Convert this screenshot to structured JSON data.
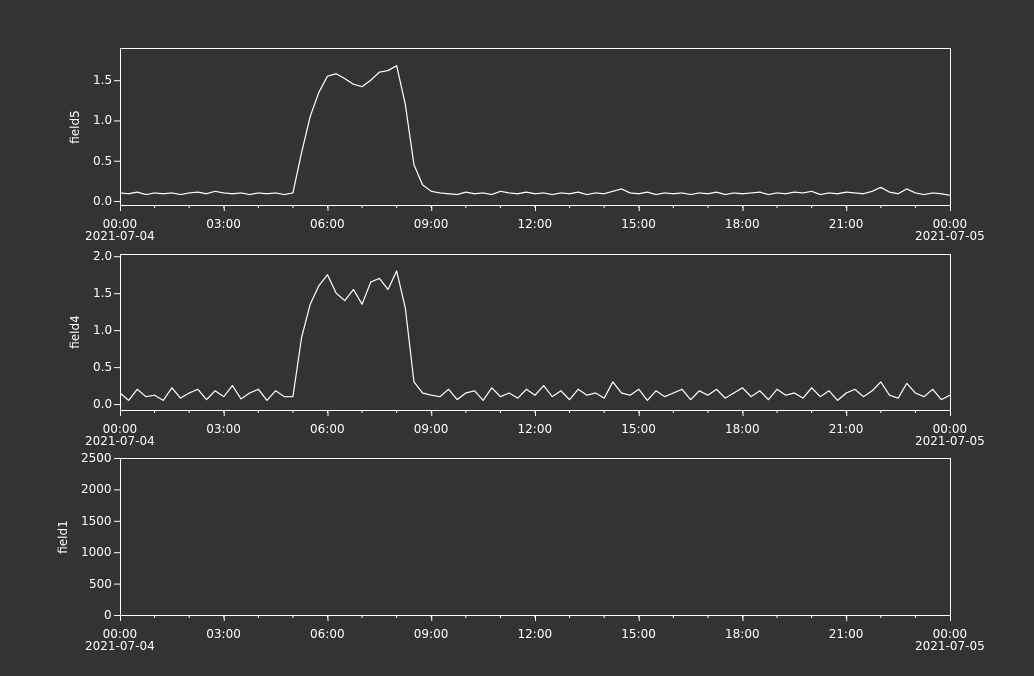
{
  "chart_data": [
    {
      "type": "line",
      "ylabel": "field5",
      "xlim": [
        "2021-07-04 00:00",
        "2021-07-05 00:00"
      ],
      "xticks": [
        {
          "value": "2021-07-04 00:00",
          "label": "00:00\n2021-07-04"
        },
        {
          "value": "2021-07-04 03:00",
          "label": "03:00"
        },
        {
          "value": "2021-07-04 06:00",
          "label": "06:00"
        },
        {
          "value": "2021-07-04 09:00",
          "label": "09:00"
        },
        {
          "value": "2021-07-04 12:00",
          "label": "12:00"
        },
        {
          "value": "2021-07-04 15:00",
          "label": "15:00"
        },
        {
          "value": "2021-07-04 18:00",
          "label": "18:00"
        },
        {
          "value": "2021-07-04 21:00",
          "label": "21:00"
        },
        {
          "value": "2021-07-05 00:00",
          "label": "00:00\n2021-07-05"
        }
      ],
      "ylim": [
        -0.05,
        1.9
      ],
      "yticks": [
        {
          "value": 0,
          "label": "0.0"
        },
        {
          "value": 0.5,
          "label": "0.5"
        },
        {
          "value": 1,
          "label": "1.0"
        },
        {
          "value": 1.5,
          "label": "1.5"
        }
      ],
      "x": [
        "2021-07-04 00:00",
        "2021-07-04 00:15",
        "2021-07-04 00:30",
        "2021-07-04 00:45",
        "2021-07-04 01:00",
        "2021-07-04 01:15",
        "2021-07-04 01:30",
        "2021-07-04 01:45",
        "2021-07-04 02:00",
        "2021-07-04 02:15",
        "2021-07-04 02:30",
        "2021-07-04 02:45",
        "2021-07-04 03:00",
        "2021-07-04 03:15",
        "2021-07-04 03:30",
        "2021-07-04 03:45",
        "2021-07-04 04:00",
        "2021-07-04 04:15",
        "2021-07-04 04:30",
        "2021-07-04 04:45",
        "2021-07-04 05:00",
        "2021-07-04 05:15",
        "2021-07-04 05:30",
        "2021-07-04 05:45",
        "2021-07-04 06:00",
        "2021-07-04 06:15",
        "2021-07-04 06:30",
        "2021-07-04 06:45",
        "2021-07-04 07:00",
        "2021-07-04 07:15",
        "2021-07-04 07:30",
        "2021-07-04 07:45",
        "2021-07-04 08:00",
        "2021-07-04 08:15",
        "2021-07-04 08:30",
        "2021-07-04 08:45",
        "2021-07-04 09:00",
        "2021-07-04 09:15",
        "2021-07-04 09:30",
        "2021-07-04 09:45",
        "2021-07-04 10:00",
        "2021-07-04 10:15",
        "2021-07-04 10:30",
        "2021-07-04 10:45",
        "2021-07-04 11:00",
        "2021-07-04 11:15",
        "2021-07-04 11:30",
        "2021-07-04 11:45",
        "2021-07-04 12:00",
        "2021-07-04 12:15",
        "2021-07-04 12:30",
        "2021-07-04 12:45",
        "2021-07-04 13:00",
        "2021-07-04 13:15",
        "2021-07-04 13:30",
        "2021-07-04 13:45",
        "2021-07-04 14:00",
        "2021-07-04 14:15",
        "2021-07-04 14:30",
        "2021-07-04 14:45",
        "2021-07-04 15:00",
        "2021-07-04 15:15",
        "2021-07-04 15:30",
        "2021-07-04 15:45",
        "2021-07-04 16:00",
        "2021-07-04 16:15",
        "2021-07-04 16:30",
        "2021-07-04 16:45",
        "2021-07-04 17:00",
        "2021-07-04 17:15",
        "2021-07-04 17:30",
        "2021-07-04 17:45",
        "2021-07-04 18:00",
        "2021-07-04 18:15",
        "2021-07-04 18:30",
        "2021-07-04 18:45",
        "2021-07-04 19:00",
        "2021-07-04 19:15",
        "2021-07-04 19:30",
        "2021-07-04 19:45",
        "2021-07-04 20:00",
        "2021-07-04 20:15",
        "2021-07-04 20:30",
        "2021-07-04 20:45",
        "2021-07-04 21:00",
        "2021-07-04 21:15",
        "2021-07-04 21:30",
        "2021-07-04 21:45",
        "2021-07-04 22:00",
        "2021-07-04 22:15",
        "2021-07-04 22:30",
        "2021-07-04 22:45",
        "2021-07-04 23:00",
        "2021-07-04 23:15",
        "2021-07-04 23:30",
        "2021-07-04 23:45",
        "2021-07-05 00:00"
      ],
      "series": [
        {
          "color": "#ffffff",
          "values": [
            0.1,
            0.09,
            0.11,
            0.08,
            0.1,
            0.09,
            0.1,
            0.08,
            0.1,
            0.11,
            0.09,
            0.12,
            0.1,
            0.09,
            0.1,
            0.08,
            0.1,
            0.09,
            0.1,
            0.08,
            0.1,
            0.6,
            1.05,
            1.35,
            1.55,
            1.58,
            1.52,
            1.45,
            1.42,
            1.5,
            1.6,
            1.62,
            1.68,
            1.2,
            0.45,
            0.2,
            0.12,
            0.1,
            0.09,
            0.08,
            0.11,
            0.09,
            0.1,
            0.08,
            0.12,
            0.1,
            0.09,
            0.11,
            0.09,
            0.1,
            0.08,
            0.1,
            0.09,
            0.11,
            0.08,
            0.1,
            0.09,
            0.12,
            0.15,
            0.1,
            0.09,
            0.11,
            0.08,
            0.1,
            0.09,
            0.1,
            0.08,
            0.1,
            0.09,
            0.11,
            0.08,
            0.1,
            0.09,
            0.1,
            0.11,
            0.08,
            0.1,
            0.09,
            0.11,
            0.1,
            0.12,
            0.08,
            0.1,
            0.09,
            0.11,
            0.1,
            0.09,
            0.12,
            0.17,
            0.11,
            0.09,
            0.15,
            0.1,
            0.08,
            0.1,
            0.09,
            0.07
          ]
        }
      ]
    },
    {
      "type": "line",
      "ylabel": "field4",
      "xlim": [
        "2021-07-04 00:00",
        "2021-07-05 00:00"
      ],
      "xticks": [
        {
          "value": "2021-07-04 00:00",
          "label": "00:00\n2021-07-04"
        },
        {
          "value": "2021-07-04 03:00",
          "label": "03:00"
        },
        {
          "value": "2021-07-04 06:00",
          "label": "06:00"
        },
        {
          "value": "2021-07-04 09:00",
          "label": "09:00"
        },
        {
          "value": "2021-07-04 12:00",
          "label": "12:00"
        },
        {
          "value": "2021-07-04 15:00",
          "label": "15:00"
        },
        {
          "value": "2021-07-04 18:00",
          "label": "18:00"
        },
        {
          "value": "2021-07-04 21:00",
          "label": "21:00"
        },
        {
          "value": "2021-07-05 00:00",
          "label": "00:00\n2021-07-05"
        }
      ],
      "ylim": [
        -0.08,
        2.03
      ],
      "yticks": [
        {
          "value": 0,
          "label": "0.0"
        },
        {
          "value": 0.5,
          "label": "0.5"
        },
        {
          "value": 1,
          "label": "1.0"
        },
        {
          "value": 1.5,
          "label": "1.5"
        },
        {
          "value": 2,
          "label": "2.0"
        }
      ],
      "x": [
        "2021-07-04 00:00",
        "2021-07-04 00:15",
        "2021-07-04 00:30",
        "2021-07-04 00:45",
        "2021-07-04 01:00",
        "2021-07-04 01:15",
        "2021-07-04 01:30",
        "2021-07-04 01:45",
        "2021-07-04 02:00",
        "2021-07-04 02:15",
        "2021-07-04 02:30",
        "2021-07-04 02:45",
        "2021-07-04 03:00",
        "2021-07-04 03:15",
        "2021-07-04 03:30",
        "2021-07-04 03:45",
        "2021-07-04 04:00",
        "2021-07-04 04:15",
        "2021-07-04 04:30",
        "2021-07-04 04:45",
        "2021-07-04 05:00",
        "2021-07-04 05:15",
        "2021-07-04 05:30",
        "2021-07-04 05:45",
        "2021-07-04 06:00",
        "2021-07-04 06:15",
        "2021-07-04 06:30",
        "2021-07-04 06:45",
        "2021-07-04 07:00",
        "2021-07-04 07:15",
        "2021-07-04 07:30",
        "2021-07-04 07:45",
        "2021-07-04 08:00",
        "2021-07-04 08:15",
        "2021-07-04 08:30",
        "2021-07-04 08:45",
        "2021-07-04 09:00",
        "2021-07-04 09:15",
        "2021-07-04 09:30",
        "2021-07-04 09:45",
        "2021-07-04 10:00",
        "2021-07-04 10:15",
        "2021-07-04 10:30",
        "2021-07-04 10:45",
        "2021-07-04 11:00",
        "2021-07-04 11:15",
        "2021-07-04 11:30",
        "2021-07-04 11:45",
        "2021-07-04 12:00",
        "2021-07-04 12:15",
        "2021-07-04 12:30",
        "2021-07-04 12:45",
        "2021-07-04 13:00",
        "2021-07-04 13:15",
        "2021-07-04 13:30",
        "2021-07-04 13:45",
        "2021-07-04 14:00",
        "2021-07-04 14:15",
        "2021-07-04 14:30",
        "2021-07-04 14:45",
        "2021-07-04 15:00",
        "2021-07-04 15:15",
        "2021-07-04 15:30",
        "2021-07-04 15:45",
        "2021-07-04 16:00",
        "2021-07-04 16:15",
        "2021-07-04 16:30",
        "2021-07-04 16:45",
        "2021-07-04 17:00",
        "2021-07-04 17:15",
        "2021-07-04 17:30",
        "2021-07-04 17:45",
        "2021-07-04 18:00",
        "2021-07-04 18:15",
        "2021-07-04 18:30",
        "2021-07-04 18:45",
        "2021-07-04 19:00",
        "2021-07-04 19:15",
        "2021-07-04 19:30",
        "2021-07-04 19:45",
        "2021-07-04 20:00",
        "2021-07-04 20:15",
        "2021-07-04 20:30",
        "2021-07-04 20:45",
        "2021-07-04 21:00",
        "2021-07-04 21:15",
        "2021-07-04 21:30",
        "2021-07-04 21:45",
        "2021-07-04 22:00",
        "2021-07-04 22:15",
        "2021-07-04 22:30",
        "2021-07-04 22:45",
        "2021-07-04 23:00",
        "2021-07-04 23:15",
        "2021-07-04 23:30",
        "2021-07-04 23:45",
        "2021-07-05 00:00"
      ],
      "series": [
        {
          "color": "#ffffff",
          "values": [
            0.15,
            0.05,
            0.2,
            0.1,
            0.12,
            0.05,
            0.22,
            0.08,
            0.15,
            0.2,
            0.06,
            0.18,
            0.1,
            0.25,
            0.07,
            0.15,
            0.2,
            0.05,
            0.18,
            0.1,
            0.1,
            0.9,
            1.35,
            1.6,
            1.75,
            1.5,
            1.4,
            1.55,
            1.35,
            1.65,
            1.7,
            1.55,
            1.8,
            1.3,
            0.3,
            0.15,
            0.12,
            0.1,
            0.2,
            0.06,
            0.15,
            0.18,
            0.05,
            0.22,
            0.1,
            0.15,
            0.08,
            0.2,
            0.12,
            0.25,
            0.1,
            0.18,
            0.06,
            0.2,
            0.12,
            0.15,
            0.08,
            0.3,
            0.15,
            0.12,
            0.2,
            0.05,
            0.18,
            0.1,
            0.15,
            0.2,
            0.06,
            0.18,
            0.12,
            0.2,
            0.08,
            0.15,
            0.22,
            0.1,
            0.18,
            0.06,
            0.2,
            0.12,
            0.15,
            0.08,
            0.22,
            0.1,
            0.18,
            0.05,
            0.15,
            0.2,
            0.1,
            0.18,
            0.3,
            0.12,
            0.08,
            0.28,
            0.15,
            0.1,
            0.2,
            0.06,
            0.12
          ]
        }
      ]
    },
    {
      "type": "line",
      "ylabel": "field1",
      "xlim": [
        "2021-07-04 00:00",
        "2021-07-05 00:00"
      ],
      "xticks": [
        {
          "value": "2021-07-04 00:00",
          "label": "00:00\n2021-07-04"
        },
        {
          "value": "2021-07-04 03:00",
          "label": "03:00"
        },
        {
          "value": "2021-07-04 06:00",
          "label": "06:00"
        },
        {
          "value": "2021-07-04 09:00",
          "label": "09:00"
        },
        {
          "value": "2021-07-04 12:00",
          "label": "12:00"
        },
        {
          "value": "2021-07-04 15:00",
          "label": "15:00"
        },
        {
          "value": "2021-07-04 18:00",
          "label": "18:00"
        },
        {
          "value": "2021-07-04 21:00",
          "label": "21:00"
        },
        {
          "value": "2021-07-05 00:00",
          "label": "00:00\n2021-07-05"
        }
      ],
      "ylim": [
        0,
        2500
      ],
      "yticks": [
        0,
        500,
        1000,
        1500,
        2000,
        2500
      ]
    }
  ]
}
